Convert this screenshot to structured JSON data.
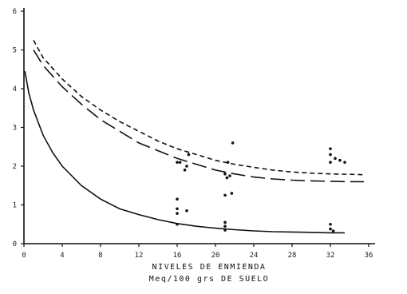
{
  "chart_data": {
    "type": "scatter",
    "title": "",
    "xlabel": [
      "NIVELES DE ENMIENDA",
      "Meq/100 grs DE SUELO"
    ],
    "ylabel": "",
    "xlim": [
      0,
      36
    ],
    "ylim": [
      0,
      6
    ],
    "x_ticks": [
      0,
      4,
      8,
      12,
      16,
      20,
      24,
      28,
      32,
      36
    ],
    "x_tick_labels": [
      "0",
      "4",
      "8",
      "12",
      "16",
      "20",
      "24",
      "28",
      "32",
      "36"
    ],
    "y_ticks": [
      0,
      1,
      2,
      3,
      4,
      5,
      6
    ],
    "y_tick_labels": [
      "0",
      "1",
      "2",
      "3",
      "4",
      "5",
      "6"
    ],
    "grid": false,
    "series": [
      {
        "style": "short-dash",
        "color": "#111111",
        "curve": [
          [
            1,
            5.25
          ],
          [
            2,
            4.8
          ],
          [
            4,
            4.25
          ],
          [
            6,
            3.8
          ],
          [
            8,
            3.45
          ],
          [
            10,
            3.15
          ],
          [
            12,
            2.9
          ],
          [
            14,
            2.65
          ],
          [
            16,
            2.45
          ],
          [
            18,
            2.3
          ],
          [
            20,
            2.15
          ],
          [
            22,
            2.05
          ],
          [
            24,
            1.97
          ],
          [
            26,
            1.9
          ],
          [
            28,
            1.85
          ],
          [
            30,
            1.82
          ],
          [
            32,
            1.8
          ],
          [
            34,
            1.79
          ],
          [
            35.5,
            1.78
          ]
        ],
        "points": [
          [
            16.3,
            2.1
          ],
          [
            17.2,
            2.3
          ],
          [
            21.3,
            2.1
          ],
          [
            21.8,
            2.6
          ],
          [
            32.0,
            2.45
          ],
          [
            32.0,
            2.3
          ],
          [
            32.5,
            2.2
          ],
          [
            32.0,
            2.1
          ],
          [
            33.0,
            2.15
          ],
          [
            33.5,
            2.1
          ]
        ]
      },
      {
        "style": "long-dash",
        "color": "#111111",
        "curve": [
          [
            1,
            5.0
          ],
          [
            2,
            4.6
          ],
          [
            4,
            4.05
          ],
          [
            6,
            3.6
          ],
          [
            8,
            3.2
          ],
          [
            10,
            2.9
          ],
          [
            12,
            2.6
          ],
          [
            14,
            2.4
          ],
          [
            16,
            2.2
          ],
          [
            18,
            2.05
          ],
          [
            20,
            1.9
          ],
          [
            22,
            1.8
          ],
          [
            24,
            1.72
          ],
          [
            26,
            1.67
          ],
          [
            28,
            1.64
          ],
          [
            30,
            1.62
          ],
          [
            32,
            1.61
          ],
          [
            34,
            1.6
          ],
          [
            35.5,
            1.6
          ]
        ],
        "points": [
          [
            16.0,
            2.1
          ],
          [
            16.8,
            1.9
          ],
          [
            17.0,
            2.0
          ],
          [
            21.0,
            1.8
          ],
          [
            21.2,
            1.7
          ],
          [
            21.5,
            1.75
          ]
        ]
      },
      {
        "style": "solid",
        "color": "#111111",
        "curve": [
          [
            0.1,
            4.45
          ],
          [
            0.5,
            3.9
          ],
          [
            1,
            3.45
          ],
          [
            2,
            2.8
          ],
          [
            3,
            2.35
          ],
          [
            4,
            2.0
          ],
          [
            6,
            1.5
          ],
          [
            8,
            1.15
          ],
          [
            10,
            0.9
          ],
          [
            12,
            0.75
          ],
          [
            14,
            0.62
          ],
          [
            16,
            0.52
          ],
          [
            18,
            0.45
          ],
          [
            20,
            0.4
          ],
          [
            22,
            0.36
          ],
          [
            24,
            0.33
          ],
          [
            26,
            0.31
          ],
          [
            28,
            0.3
          ],
          [
            30,
            0.29
          ],
          [
            32,
            0.28
          ],
          [
            33.5,
            0.28
          ]
        ],
        "points": [
          [
            16.0,
            1.15
          ],
          [
            16.0,
            0.9
          ],
          [
            16.0,
            0.78
          ],
          [
            16.0,
            0.5
          ],
          [
            17.0,
            0.85
          ],
          [
            21.0,
            1.25
          ],
          [
            21.0,
            0.55
          ],
          [
            21.0,
            0.45
          ],
          [
            21.0,
            0.35
          ],
          [
            21.7,
            1.3
          ],
          [
            32.0,
            0.5
          ],
          [
            32.0,
            0.38
          ],
          [
            32.3,
            0.33
          ]
        ]
      }
    ]
  }
}
